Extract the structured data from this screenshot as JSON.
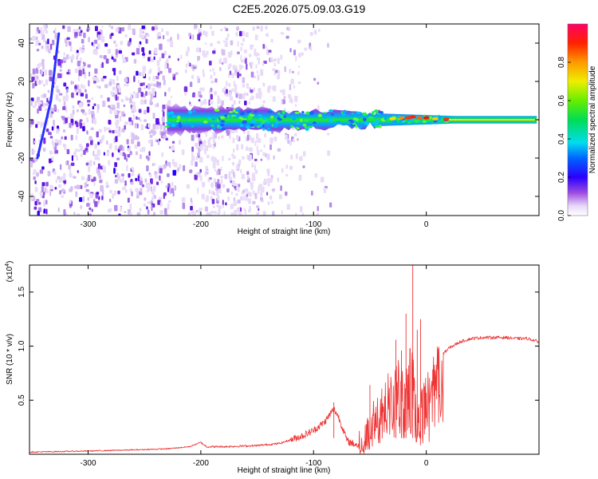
{
  "title": "C2E5.2026.075.09.03.G19",
  "chart_data": [
    {
      "type": "heatmap",
      "xlabel": "Height of straight line (km)",
      "ylabel": "Frequency (Hz)",
      "xlim": [
        -352,
        100
      ],
      "ylim": [
        -50,
        50
      ],
      "xticks": [
        -300,
        -200,
        -100,
        0
      ],
      "yticks": [
        -40,
        -20,
        0,
        20,
        40
      ],
      "colorbar": {
        "label": "Normalized spectral amplitude",
        "range": [
          0.0,
          1.0
        ],
        "ticks": [
          0.0,
          0.2,
          0.4,
          0.6,
          0.8
        ],
        "tick_labels": [
          "0.0",
          "0.2",
          "0.4",
          "0.6",
          "0.8"
        ]
      },
      "features": {
        "noise_region_km": [
          -352,
          -140
        ],
        "drift_line": [
          {
            "x": -326,
            "y": 45
          },
          {
            "x": -333,
            "y": 10
          },
          {
            "x": -345,
            "y": -20
          }
        ],
        "signal_band": {
          "start_km": -230,
          "center_hz": 0,
          "width_hz_start": 14,
          "width_hz_end": 4
        }
      }
    },
    {
      "type": "line",
      "xlabel": "Height of straight line (km)",
      "ylabel": "SNR (10 * v/v)",
      "yscale_label": "(x10",
      "yscale_exponent": "4",
      "xlim": [
        -352,
        100
      ],
      "ylim": [
        0,
        1.75
      ],
      "xticks": [
        -300,
        -200,
        -100,
        0
      ],
      "yticks": [
        0.5,
        1.0,
        1.5
      ],
      "ytick_labels": [
        "0.5",
        "1.0",
        "1.5"
      ],
      "series": [
        {
          "name": "SNR",
          "color": "#ee3333",
          "x": [
            -352,
            -300,
            -260,
            -230,
            -210,
            -200,
            -195,
            -180,
            -150,
            -130,
            -110,
            -100,
            -90,
            -82,
            -78,
            -70,
            -60,
            -50,
            -45,
            -40,
            -35,
            -30,
            -25,
            -20,
            -15,
            -12,
            -10,
            -5,
            0,
            5,
            10,
            15,
            20,
            30,
            40,
            50,
            60,
            70,
            80,
            90,
            100
          ],
          "y": [
            0.02,
            0.03,
            0.04,
            0.05,
            0.07,
            0.11,
            0.07,
            0.07,
            0.08,
            0.1,
            0.17,
            0.22,
            0.3,
            0.42,
            0.35,
            0.12,
            0.08,
            0.22,
            0.4,
            0.5,
            0.62,
            0.6,
            0.75,
            0.58,
            0.7,
            1.75,
            0.55,
            0.55,
            0.65,
            0.75,
            0.85,
            0.93,
            0.98,
            1.04,
            1.07,
            1.08,
            1.08,
            1.08,
            1.07,
            1.07,
            1.04
          ],
          "spikes": [
            {
              "x": -82,
              "y": 0.48
            },
            {
              "x": -50,
              "y": 0.64
            },
            {
              "x": -27,
              "y": 1.06
            },
            {
              "x": -22,
              "y": 0.96
            },
            {
              "x": -18,
              "y": 1.3
            },
            {
              "x": -12,
              "y": 1.75
            },
            {
              "x": -8,
              "y": 1.15
            },
            {
              "x": -5,
              "y": 1.25
            }
          ]
        }
      ]
    }
  ]
}
